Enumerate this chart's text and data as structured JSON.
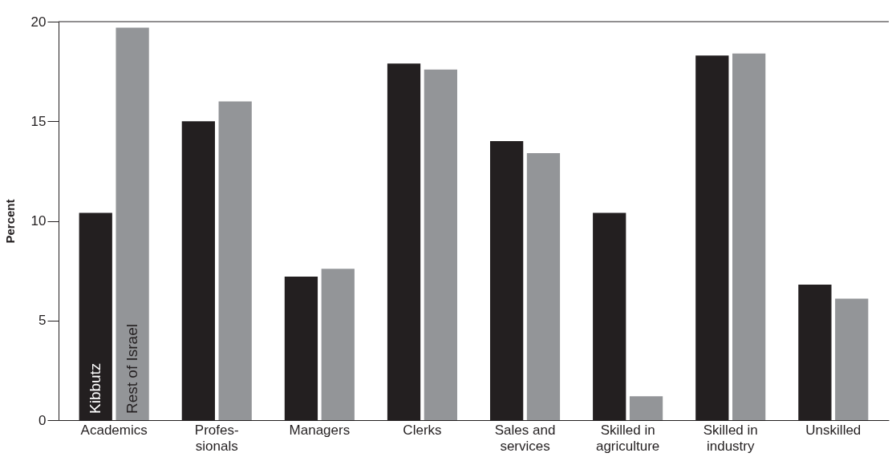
{
  "chart_data": {
    "type": "bar",
    "ylabel": "Percent",
    "categories": [
      "Academics",
      "Profes-\nsionals",
      "Managers",
      "Clerks",
      "Sales and\nservices",
      "Skilled in\nagriculture",
      "Skilled in\nindustry",
      "Unskilled"
    ],
    "series": [
      {
        "name": "Kibbutz",
        "color": "#231f20",
        "values": [
          10.4,
          15.0,
          7.2,
          17.9,
          14.0,
          10.4,
          18.3,
          6.8
        ]
      },
      {
        "name": "Rest of Israel",
        "color": "#939598",
        "values": [
          19.7,
          16.0,
          7.6,
          17.6,
          13.4,
          1.2,
          18.4,
          6.1
        ]
      }
    ],
    "ylim": [
      0,
      20
    ],
    "yticks": [
      0,
      5,
      10,
      15,
      20
    ],
    "grid": false,
    "legend": false
  }
}
